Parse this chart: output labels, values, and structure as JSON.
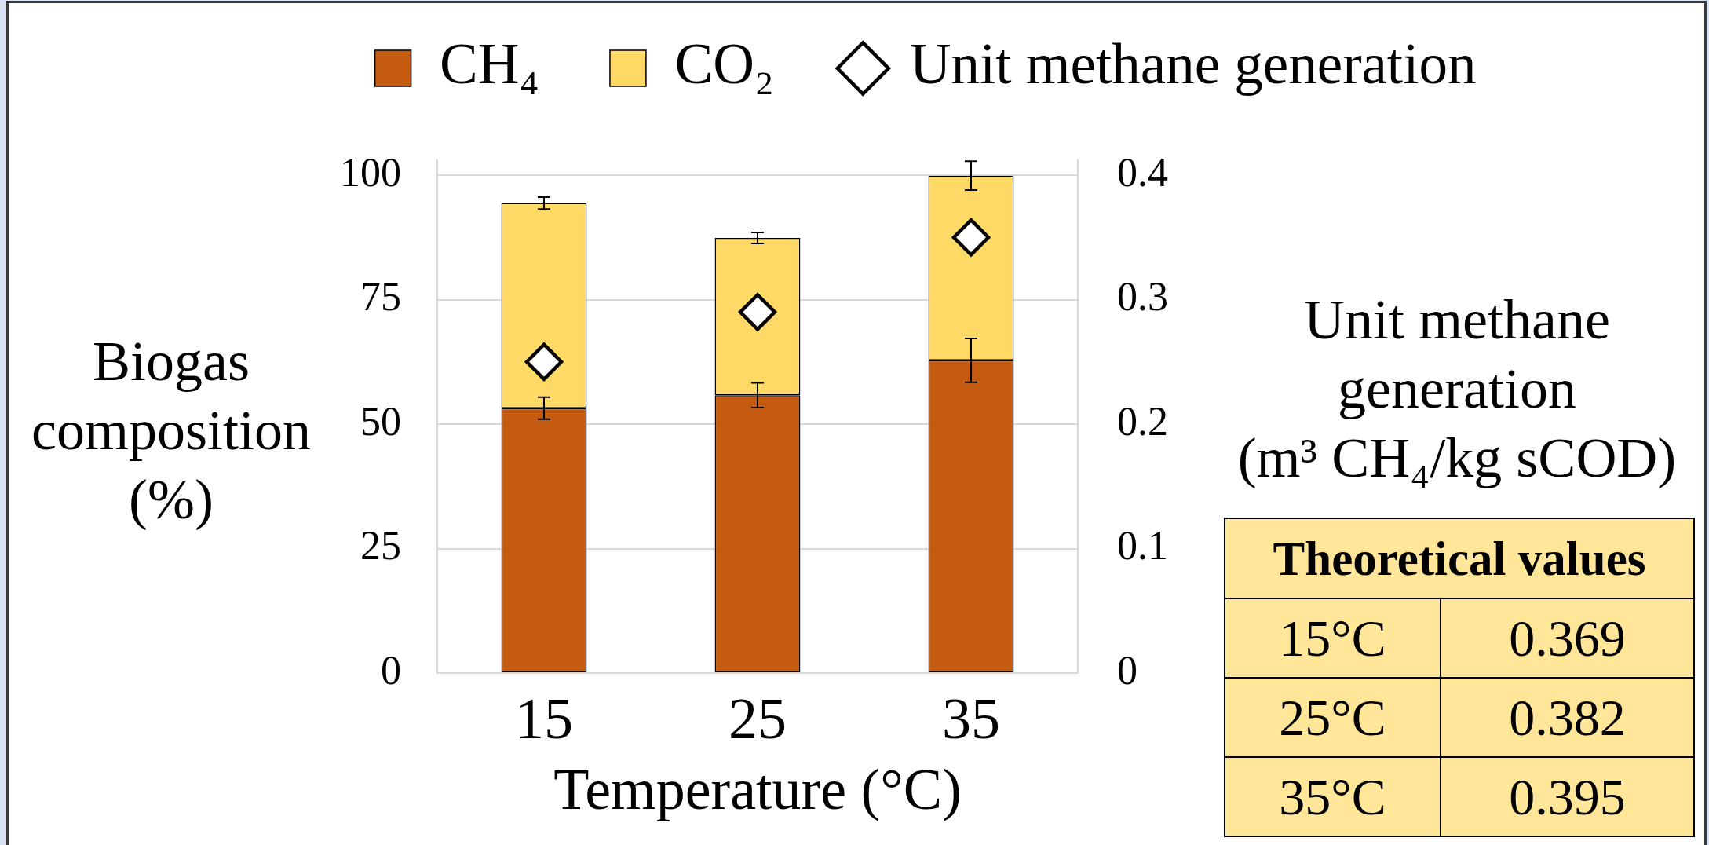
{
  "chart_data": [
    {
      "type": "bar",
      "xlabel": "Temperature (°C)",
      "ylabel": "Biogas composition (%)",
      "y2label": "Unit methane generation (m³ CH₄/kg sCOD)",
      "categories": [
        "15",
        "25",
        "35"
      ],
      "stacked": true,
      "series": [
        {
          "name": "CH₄",
          "color": "#c55a11",
          "values": [
            53.2,
            55.8,
            62.8
          ],
          "errors": [
            2.2,
            2.5,
            4.4
          ]
        },
        {
          "name": "CO₂",
          "color": "#ffd966",
          "values": [
            41.2,
            31.6,
            37.1
          ],
          "errors": [
            1.2,
            1.1,
            2.9
          ]
        },
        {
          "name": "Unit methane generation",
          "type": "scatter",
          "axis": "y2",
          "color": "#ffffff",
          "marker": "diamond",
          "x": [
            "15",
            "25",
            "35"
          ],
          "values": [
            0.25,
            0.29,
            0.35
          ]
        }
      ],
      "ylim": [
        0,
        103
      ],
      "yticks": [
        0,
        25,
        50,
        75,
        100
      ],
      "y2lim": [
        0,
        0.412
      ],
      "y2ticks": [
        0,
        0.1,
        0.2,
        0.3,
        0.4
      ],
      "grid": "y",
      "legend": "top"
    },
    {
      "type": "other",
      "title": "Theoretical values",
      "categories": [
        "15°C",
        "25°C",
        "35°C"
      ],
      "values": [
        0.369,
        0.382,
        0.395
      ],
      "data_labels": true
    }
  ]
}
